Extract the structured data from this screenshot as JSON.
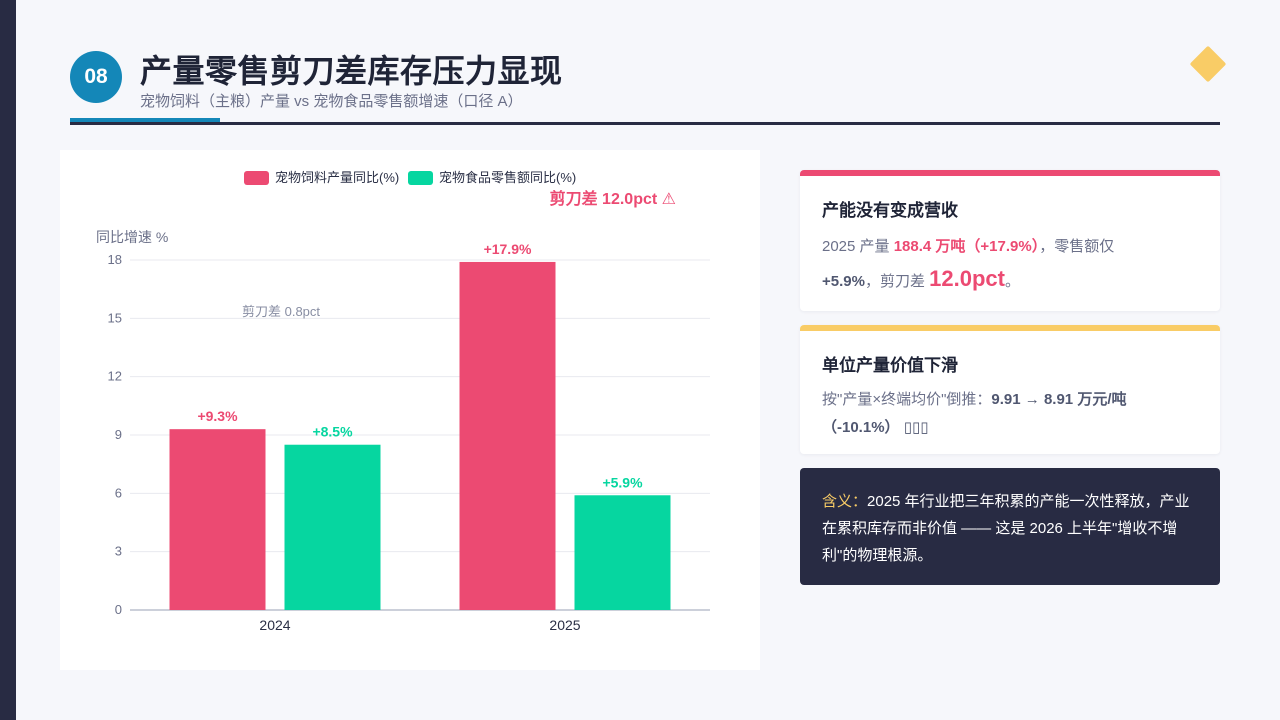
{
  "header": {
    "number": "08",
    "title": "产量零售剪刀差库存压力显现",
    "subtitle": "宠物饲料（主粮）产量 vs 宠物食品零售额增速（口径 A）"
  },
  "colors": {
    "production": "#ec4a72",
    "retail": "#06d6a0",
    "accent_blue": "#1487b8",
    "navy": "#282b43",
    "gold": "#f9cc66"
  },
  "chart_data": {
    "type": "bar",
    "categories": [
      "2024",
      "2025"
    ],
    "series": [
      {
        "name": "宠物饲料产量同比(%)",
        "values": [
          9.3,
          17.9
        ],
        "labels": [
          "+9.3%",
          "+17.9%"
        ]
      },
      {
        "name": "宠物食品零售额同比(%)",
        "values": [
          8.5,
          5.9
        ],
        "labels": [
          "+8.5%",
          "+5.9%"
        ]
      }
    ],
    "ylabel": "同比增速 %",
    "ylim": [
      0,
      18
    ],
    "yticks": [
      0,
      3,
      6,
      9,
      12,
      15,
      18
    ],
    "grid": true,
    "legend": "top-center",
    "annotations": {
      "gap_2024": "剪刀差 0.8pct",
      "gap_2025": "剪刀差 12.0pct ⚠"
    }
  },
  "cards": {
    "card1": {
      "title": "产能没有变成营收",
      "line1_prefix": "2025 产量 ",
      "line1_highlight": "188.4 万吨（+17.9%）",
      "line1_suffix": "，零售额仅",
      "line2_strong": "+5.9%",
      "line2_mid": "，剪刀差 ",
      "line2_big": "12.0pct",
      "line2_end": "。"
    },
    "card2": {
      "title": "单位产量价值下滑",
      "text_prefix": "按\"产量×终端均价\"倒推：",
      "text_strong": "9.91 → 8.91 万元/吨（-10.1%）",
      "text_suffix": " ▯▯▯"
    }
  },
  "note": {
    "label": "含义：",
    "text": "2025 年行业把三年积累的产能一次性释放，产业在累积库存而非价值 —— 这是 2026 上半年\"增收不增利\"的物理根源。"
  }
}
